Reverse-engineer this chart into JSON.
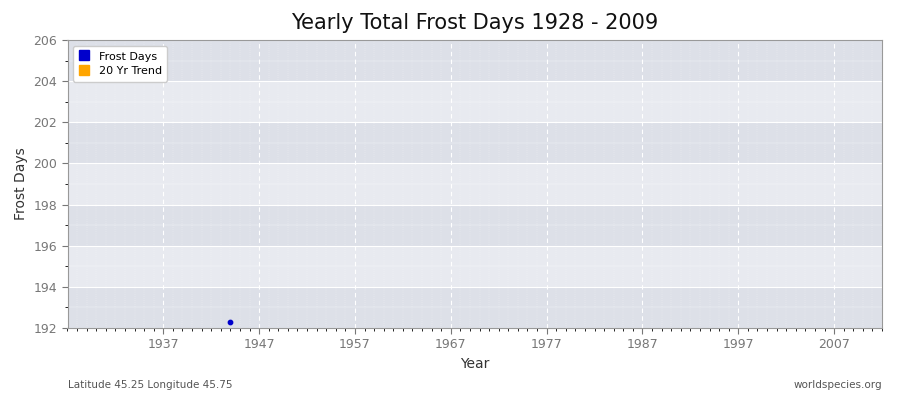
{
  "title": "Yearly Total Frost Days 1928 - 2009",
  "xlabel": "Year",
  "ylabel": "Frost Days",
  "xlim": [
    1927,
    2012
  ],
  "ylim": [
    192,
    206
  ],
  "yticks": [
    192,
    194,
    196,
    198,
    200,
    202,
    204,
    206
  ],
  "xticks": [
    1937,
    1947,
    1957,
    1967,
    1977,
    1987,
    1997,
    2007
  ],
  "bg_color": "#ffffff",
  "plot_bg_color": "#e8eaf0",
  "plot_bg_band_color": "#dde0e8",
  "grid_major_color": "#ffffff",
  "grid_minor_color": "#ffffff",
  "frost_days_color": "#0000cc",
  "trend_color": "#ffa500",
  "data_point_x": 1944,
  "data_point_y": 192.3,
  "subtitle_left": "Latitude 45.25 Longitude 45.75",
  "subtitle_right": "worldspecies.org",
  "title_fontsize": 15,
  "axis_label_fontsize": 10,
  "tick_fontsize": 9,
  "tick_color": "#777777",
  "spine_color": "#999999"
}
